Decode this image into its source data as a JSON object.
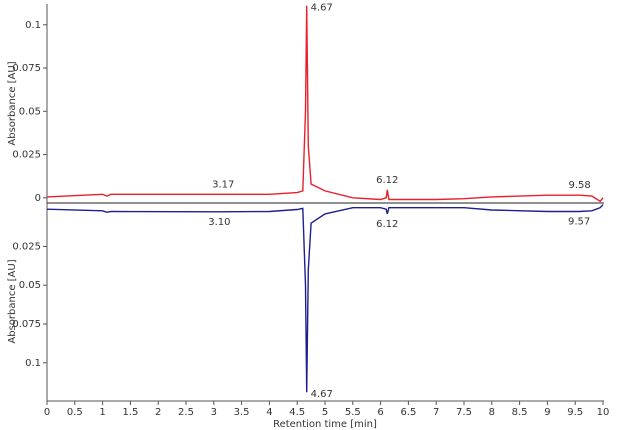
{
  "chart_data": [
    {
      "type": "line",
      "y_label": "Absorbance [AU]",
      "ylim": [
        -0.003,
        0.112
      ],
      "yticks": [
        0,
        0.025,
        0.05,
        0.075,
        0.1
      ],
      "direction": "up",
      "series": [
        {
          "color": "#e8202a",
          "x": [
            0,
            1.0,
            1.08,
            1.15,
            3.17,
            4.0,
            4.5,
            4.6,
            4.65,
            4.67,
            4.7,
            4.75,
            5.0,
            5.5,
            6.0,
            6.1,
            6.12,
            6.15,
            6.3,
            7.0,
            7.5,
            8.0,
            9.0,
            9.58,
            9.8,
            9.95,
            10
          ],
          "values": [
            0.0005,
            0.002,
            0.001,
            0.002,
            0.002,
            0.002,
            0.003,
            0.004,
            0.05,
            0.111,
            0.03,
            0.008,
            0.004,
            0.0,
            -0.001,
            0.0,
            0.0046,
            -0.001,
            -0.001,
            -0.001,
            -0.0005,
            0.0005,
            0.0015,
            0.0015,
            0.001,
            -0.002,
            0.0
          ]
        }
      ],
      "annotations": [
        {
          "label": "4.67",
          "x": 4.67,
          "y": 0.111
        },
        {
          "label": "3.17",
          "x": 3.17,
          "y": 0.002
        },
        {
          "label": "6.12",
          "x": 6.12,
          "y": 0.0046
        },
        {
          "label": "9.58",
          "x": 9.58,
          "y": 0.0015
        }
      ]
    },
    {
      "type": "line",
      "y_label": "Absorbance [AU]",
      "x_label": "Retention time [min]",
      "ylim": [
        -0.003,
        0.124
      ],
      "yticks": [
        0.025,
        0.05,
        0.075,
        0.1
      ],
      "direction": "down",
      "xlim": [
        0,
        10
      ],
      "xticks": [
        0,
        0.5,
        1,
        1.5,
        2,
        2.5,
        3,
        3.5,
        4,
        4.5,
        5,
        5.5,
        6,
        6.5,
        7,
        7.5,
        8,
        8.5,
        9,
        9.5,
        10
      ],
      "series": [
        {
          "color": "#1f1f8f",
          "x": [
            0,
            1.0,
            1.08,
            1.15,
            3.1,
            4.0,
            4.5,
            4.6,
            4.65,
            4.67,
            4.7,
            4.75,
            5.0,
            5.5,
            6.0,
            6.1,
            6.12,
            6.15,
            7.0,
            7.5,
            8.0,
            9.0,
            9.57,
            9.8,
            9.95,
            10
          ],
          "values": [
            0.001,
            0.002,
            0.003,
            0.0025,
            0.0027,
            0.0025,
            0.0012,
            0.0005,
            0.05,
            0.119,
            0.04,
            0.01,
            0.004,
            0.0,
            0.0,
            0.001,
            0.004,
            0.0,
            0.0,
            0.0,
            0.0015,
            0.0025,
            0.0025,
            0.002,
            0.0,
            -0.002
          ]
        }
      ],
      "annotations": [
        {
          "label": "3.10",
          "x": 3.1,
          "y": 0.0027
        },
        {
          "label": "4.67",
          "x": 4.67,
          "y": 0.119
        },
        {
          "label": "6.12",
          "x": 6.12,
          "y": 0.004
        },
        {
          "label": "9.57",
          "x": 9.57,
          "y": 0.0025
        }
      ]
    }
  ]
}
